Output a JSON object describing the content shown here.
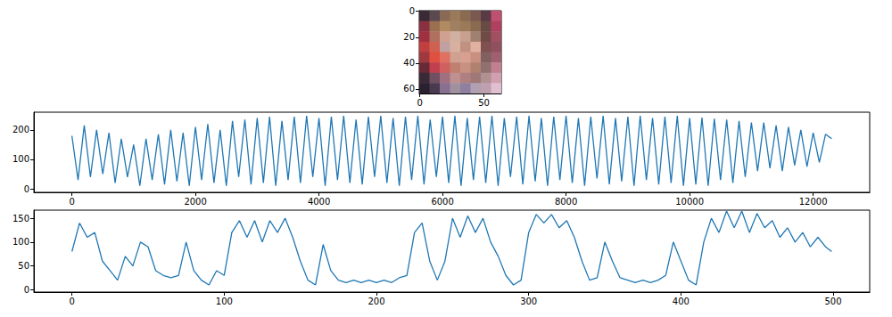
{
  "chart_data": [
    {
      "type": "image",
      "cells": [
        [
          "#3a2a35",
          "#5a4a50",
          "#8a6a55",
          "#9a7a5a",
          "#8a6a50",
          "#7a5a50",
          "#5a3a45",
          "#c05070"
        ],
        [
          "#8a3040",
          "#9a7050",
          "#b08a60",
          "#a08060",
          "#9a7a58",
          "#8a6a50",
          "#6a4a45",
          "#b04060"
        ],
        [
          "#a03040",
          "#b07060",
          "#d0a090",
          "#d0b0a0",
          "#c8a090",
          "#a08070",
          "#704a45",
          "#a05060"
        ],
        [
          "#c04040",
          "#d06050",
          "#c0a0a0",
          "#d8b0a0",
          "#c09080",
          "#e0b0a0",
          "#805050",
          "#905060"
        ],
        [
          "#a03840",
          "#e05040",
          "#e07060",
          "#d0a090",
          "#d8a090",
          "#c89080",
          "#806060",
          "#a06070"
        ],
        [
          "#6a2a35",
          "#c04050",
          "#d06060",
          "#c08070",
          "#c89080",
          "#b08070",
          "#907070",
          "#c08090"
        ],
        [
          "#3a2a35",
          "#705060",
          "#a07080",
          "#c09090",
          "#b08080",
          "#a07878",
          "#b09090",
          "#d0a0b0"
        ],
        [
          "#2a2030",
          "#4a3a50",
          "#8a7090",
          "#a090a0",
          "#9080a0",
          "#b0a0b0",
          "#c0a0b0",
          "#e0c0d0"
        ]
      ],
      "xlim": [
        -0.5,
        63.5
      ],
      "ylim": [
        63.5,
        -0.5
      ],
      "xticks": [
        0,
        50
      ],
      "yticks": [
        0,
        20,
        40,
        60
      ]
    },
    {
      "type": "line",
      "color": "#1f77b4",
      "x": [
        0,
        100,
        200,
        300,
        400,
        500,
        600,
        700,
        800,
        900,
        1000,
        1100,
        1200,
        1300,
        1400,
        1500,
        1600,
        1700,
        1800,
        1900,
        2000,
        2100,
        2200,
        2300,
        2400,
        2500,
        2600,
        2700,
        2800,
        2900,
        3000,
        3100,
        3200,
        3300,
        3400,
        3500,
        3600,
        3700,
        3800,
        3900,
        4000,
        4100,
        4200,
        4300,
        4400,
        4500,
        4600,
        4700,
        4800,
        4900,
        5000,
        5100,
        5200,
        5300,
        5400,
        5500,
        5600,
        5700,
        5800,
        5900,
        6000,
        6100,
        6200,
        6300,
        6400,
        6500,
        6600,
        6700,
        6800,
        6900,
        7000,
        7100,
        7200,
        7300,
        7400,
        7500,
        7600,
        7700,
        7800,
        7900,
        8000,
        8100,
        8200,
        8300,
        8400,
        8500,
        8600,
        8700,
        8800,
        8900,
        9000,
        9100,
        9200,
        9300,
        9400,
        9500,
        9600,
        9700,
        9800,
        9900,
        10000,
        10100,
        10200,
        10300,
        10400,
        10500,
        10600,
        10700,
        10800,
        10900,
        11000,
        11100,
        11200,
        11300,
        11400,
        11500,
        11600,
        11700,
        11800,
        11900,
        12000,
        12100,
        12200,
        12300
      ],
      "values": [
        180,
        30,
        215,
        40,
        200,
        50,
        190,
        20,
        170,
        40,
        150,
        10,
        170,
        30,
        185,
        15,
        200,
        25,
        190,
        10,
        210,
        30,
        220,
        20,
        200,
        10,
        230,
        40,
        235,
        15,
        240,
        20,
        245,
        10,
        230,
        30,
        245,
        20,
        248,
        40,
        240,
        10,
        245,
        30,
        248,
        20,
        235,
        15,
        245,
        40,
        248,
        20,
        240,
        10,
        245,
        30,
        248,
        15,
        235,
        40,
        245,
        20,
        248,
        10,
        240,
        30,
        245,
        20,
        248,
        10,
        240,
        40,
        245,
        15,
        248,
        25,
        240,
        10,
        245,
        30,
        248,
        20,
        240,
        10,
        245,
        35,
        248,
        15,
        240,
        25,
        245,
        10,
        248,
        30,
        240,
        15,
        245,
        20,
        248,
        10,
        240,
        15,
        242,
        10,
        238,
        30,
        235,
        20,
        230,
        40,
        225,
        60,
        225,
        70,
        215,
        60,
        210,
        80,
        200,
        75,
        190,
        90,
        185,
        170
      ],
      "xlim": [
        -615,
        12915
      ],
      "ylim": [
        -12,
        260
      ],
      "xticks": [
        0,
        2000,
        4000,
        6000,
        8000,
        10000,
        12000
      ],
      "yticks": [
        0,
        100,
        200
      ]
    },
    {
      "type": "line",
      "color": "#1f77b4",
      "x": [
        0,
        5,
        10,
        15,
        20,
        25,
        30,
        35,
        40,
        45,
        50,
        55,
        60,
        65,
        70,
        75,
        80,
        85,
        90,
        95,
        100,
        105,
        110,
        115,
        120,
        125,
        130,
        135,
        140,
        145,
        150,
        155,
        160,
        165,
        170,
        175,
        180,
        185,
        190,
        195,
        200,
        205,
        210,
        215,
        220,
        225,
        230,
        235,
        240,
        245,
        250,
        255,
        260,
        265,
        270,
        275,
        280,
        285,
        290,
        295,
        300,
        305,
        310,
        315,
        320,
        325,
        330,
        335,
        340,
        345,
        350,
        355,
        360,
        365,
        370,
        375,
        380,
        385,
        390,
        395,
        400,
        405,
        410,
        415,
        420,
        425,
        430,
        435,
        440,
        445,
        450,
        455,
        460,
        465,
        470,
        475,
        480,
        485,
        490,
        495,
        499
      ],
      "values": [
        80,
        140,
        110,
        120,
        60,
        40,
        20,
        70,
        50,
        100,
        90,
        40,
        30,
        25,
        30,
        100,
        40,
        20,
        10,
        40,
        30,
        120,
        145,
        110,
        145,
        100,
        145,
        120,
        150,
        110,
        60,
        20,
        10,
        95,
        40,
        20,
        15,
        20,
        15,
        20,
        15,
        20,
        15,
        25,
        30,
        120,
        140,
        60,
        20,
        60,
        150,
        110,
        155,
        120,
        150,
        100,
        70,
        30,
        10,
        20,
        120,
        158,
        140,
        158,
        130,
        145,
        110,
        60,
        20,
        25,
        100,
        60,
        25,
        20,
        15,
        20,
        15,
        20,
        30,
        100,
        60,
        20,
        10,
        100,
        150,
        120,
        165,
        130,
        165,
        120,
        160,
        130,
        145,
        110,
        130,
        100,
        120,
        90,
        110,
        90,
        80
      ],
      "xlim": [
        -25,
        524
      ],
      "ylim": [
        -5,
        167
      ],
      "xticks": [
        0,
        100,
        200,
        300,
        400,
        500
      ],
      "yticks": [
        0,
        50,
        100,
        150
      ]
    }
  ]
}
